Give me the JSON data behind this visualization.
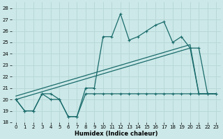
{
  "xlabel": "Humidex (Indice chaleur)",
  "xlim": [
    -0.5,
    23.5
  ],
  "ylim": [
    18,
    28.5
  ],
  "yticks": [
    18,
    19,
    20,
    21,
    22,
    23,
    24,
    25,
    26,
    27,
    28
  ],
  "xticks": [
    0,
    1,
    2,
    3,
    4,
    5,
    6,
    7,
    8,
    9,
    10,
    11,
    12,
    13,
    14,
    15,
    16,
    17,
    18,
    19,
    20,
    21,
    22,
    23
  ],
  "bg_color": "#cce8e8",
  "line_color": "#1a6b6b",
  "grid_color": "#b8d8d8",
  "curve_x": [
    0,
    1,
    2,
    3,
    4,
    5,
    6,
    7,
    8,
    9,
    10,
    11,
    12,
    13,
    14,
    15,
    16,
    17,
    18,
    19,
    20,
    21,
    22,
    23
  ],
  "curve_y": [
    20,
    19,
    19,
    20.5,
    20.5,
    20,
    18.5,
    18.5,
    21,
    21,
    25.5,
    25.5,
    27.5,
    25.2,
    25.5,
    26.0,
    26.5,
    26.8,
    25.0,
    25.5,
    24.5,
    24.5,
    20.5,
    20.5
  ],
  "flat_x": [
    0,
    1,
    2,
    3,
    4,
    5,
    6,
    7,
    8,
    9,
    10,
    11,
    12,
    13,
    14,
    15,
    16,
    17,
    18,
    19,
    20,
    21,
    22,
    23
  ],
  "flat_y": [
    20,
    19,
    19,
    20.5,
    20.0,
    20.0,
    18.5,
    18.5,
    20.5,
    20.5,
    20.5,
    20.5,
    20.5,
    20.5,
    20.5,
    20.5,
    20.5,
    20.5,
    20.5,
    20.5,
    20.5,
    20.5,
    20.5,
    20.5
  ],
  "reg1_x": [
    0,
    20,
    21,
    22,
    23
  ],
  "reg1_y": [
    20.0,
    24.5,
    20.5,
    20.5,
    20.5
  ],
  "reg2_x": [
    0,
    20,
    21,
    22,
    23
  ],
  "reg2_y": [
    20.3,
    24.8,
    20.5,
    20.5,
    20.5
  ]
}
